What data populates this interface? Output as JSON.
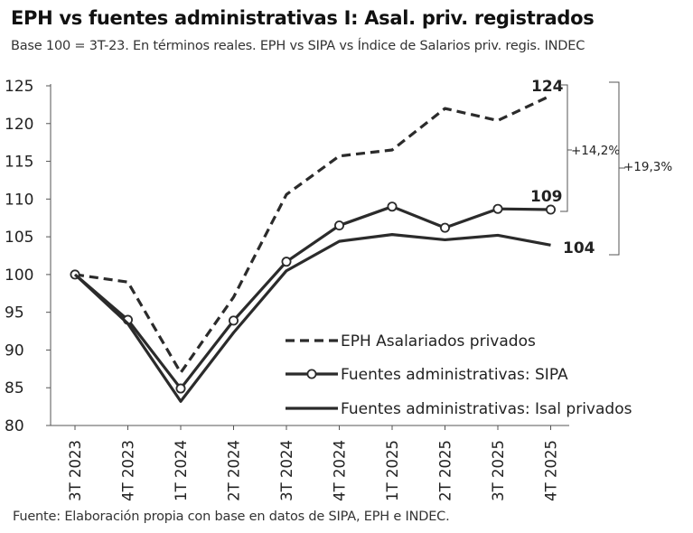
{
  "chart_data": {
    "type": "line",
    "title": "EPH vs fuentes administrativas I: Asal. priv. registrados",
    "subtitle": "Base 100 = 3T-23. En términos reales. EPH vs SIPA vs Índice de Salarios priv. regis. INDEC",
    "source": "Fuente: Elaboración propia con base en datos de SIPA, EPH e INDEC.",
    "categories": [
      "3T 2023",
      "4T 2023",
      "1T 2024",
      "2T 2024",
      "3T 2024",
      "4T 2024",
      "1T 2025",
      "2T 2025",
      "3T 2025",
      "4T 2025"
    ],
    "yticks": [
      "125",
      "120",
      "115",
      "110",
      "105",
      "100",
      "95",
      "90",
      "85",
      "80"
    ],
    "ylim": [
      80,
      125
    ],
    "grid": "horizontal",
    "legend_position": "bottom-right",
    "series": [
      {
        "name": "EPH Asalariados privados",
        "style": "dashed",
        "markers": false,
        "values": [
          100,
          99,
          87,
          97,
          110.6,
          115.7,
          116.5,
          122,
          120.4,
          123.7
        ],
        "end_label": "124"
      },
      {
        "name": "Fuentes administrativas: SIPA",
        "style": "solid",
        "markers": true,
        "values": [
          100,
          94,
          84.9,
          93.9,
          101.7,
          106.5,
          109,
          106.2,
          108.7,
          108.6
        ],
        "end_label": "109"
      },
      {
        "name": "Fuentes administrativas: Isal privados",
        "style": "solid",
        "markers": false,
        "values": [
          100,
          93.5,
          83.2,
          92.3,
          100.5,
          104.4,
          105.3,
          104.6,
          105.2,
          103.9
        ],
        "end_label": "104"
      }
    ],
    "annotations": [
      "+14,2%",
      "+19,3%"
    ],
    "colors": {
      "line": "#2b2b2b",
      "axis": "#555555",
      "text": "#222222"
    }
  }
}
